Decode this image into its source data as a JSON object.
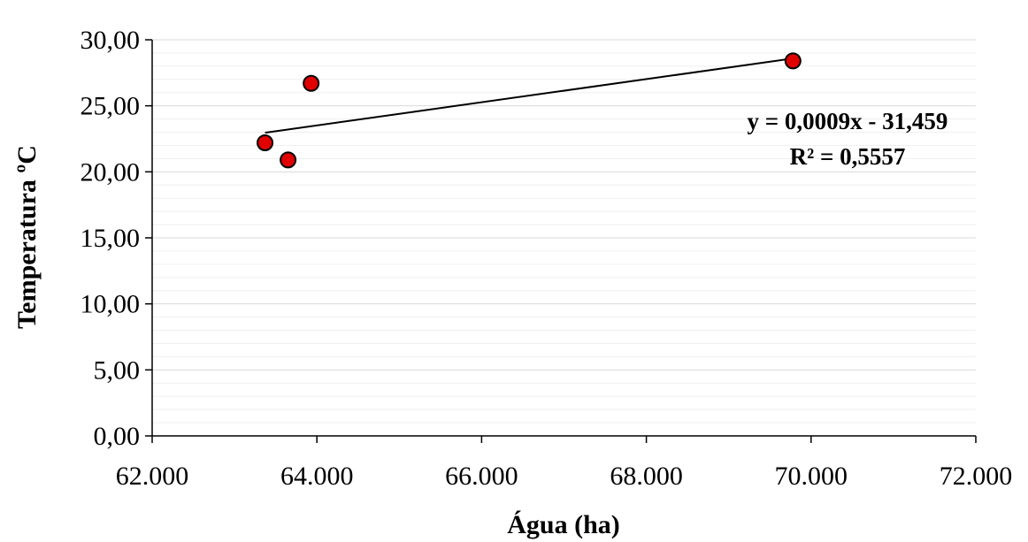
{
  "chart_data": {
    "type": "scatter",
    "title": "",
    "xlabel": "Água (ha)",
    "ylabel": "Temperatura ºC",
    "xlim": [
      62000,
      72000
    ],
    "ylim": [
      0,
      30
    ],
    "x_ticks": [
      62000,
      64000,
      66000,
      68000,
      70000,
      72000
    ],
    "x_tick_labels": [
      "62.000",
      "64.000",
      "66.000",
      "68.000",
      "70.000",
      "72.000"
    ],
    "y_ticks": [
      0,
      5,
      10,
      15,
      20,
      25,
      30
    ],
    "y_tick_labels": [
      "0,00",
      "5,00",
      "10,00",
      "15,00",
      "20,00",
      "25,00",
      "30,00"
    ],
    "grid": "horizontal",
    "series": [
      {
        "marker_color": "#e00000",
        "points": [
          {
            "x": 63370,
            "y": 22.2
          },
          {
            "x": 63650,
            "y": 20.9
          },
          {
            "x": 63930,
            "y": 26.7
          },
          {
            "x": 69780,
            "y": 28.4
          }
        ]
      }
    ],
    "trendline": {
      "x_range": [
        63370,
        69780
      ],
      "equation_label": "y = 0,0009x - 31,459",
      "r2_label": "R² = 0,5557"
    }
  }
}
